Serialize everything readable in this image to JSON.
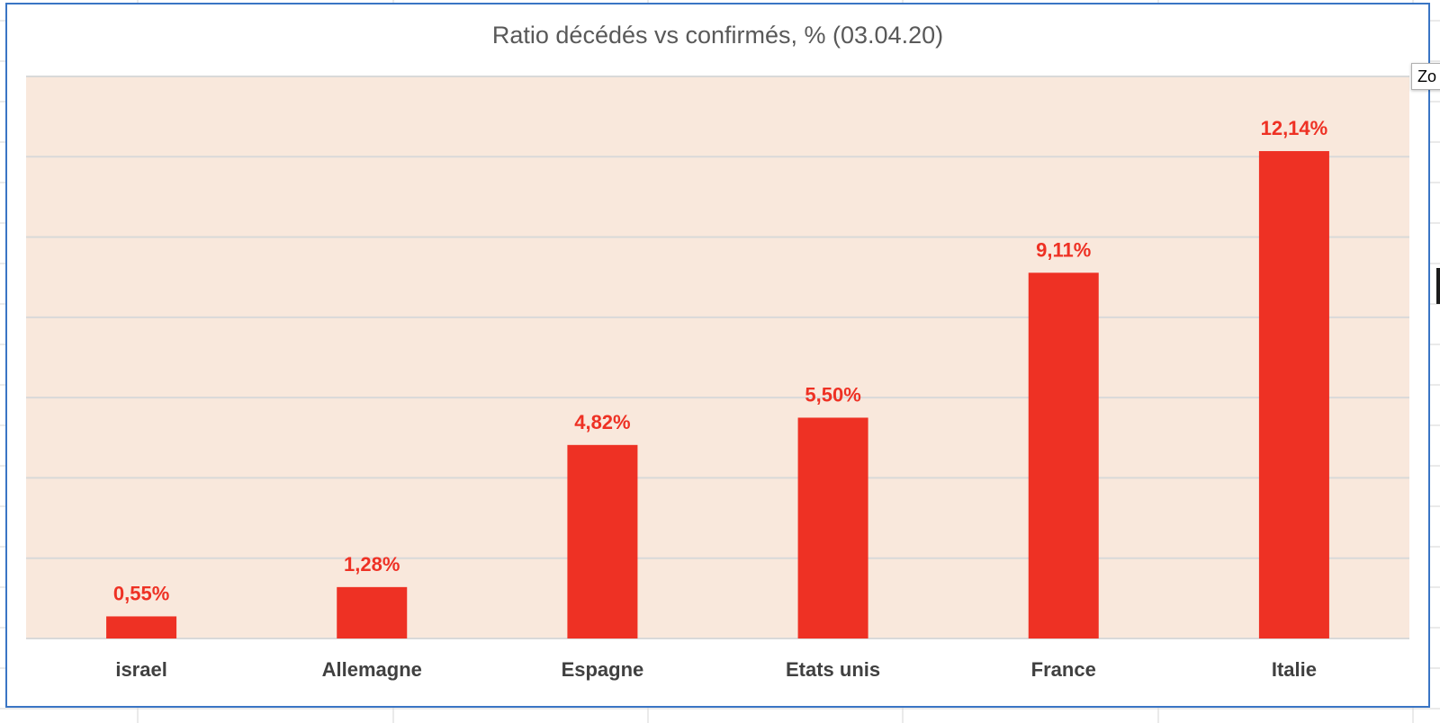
{
  "tooltip": {
    "text": "Zo"
  },
  "colors": {
    "bar": "#ee3124",
    "plot_background": "#f9e8dc",
    "gridline": "#d9d9d9",
    "frame_border": "#3a75c4",
    "sheet_gridline": "#d4d4d4"
  },
  "chart_data": {
    "type": "bar",
    "title": "Ratio décédés vs confirmés, % (03.04.20)",
    "xlabel": "",
    "ylabel": "",
    "categories": [
      "israel",
      "Allemagne",
      "Espagne",
      "Etats unis",
      "France",
      "Italie"
    ],
    "values": [
      0.55,
      1.28,
      4.82,
      5.5,
      9.11,
      12.14
    ],
    "value_labels": [
      "0,55%",
      "1,28%",
      "4,82%",
      "5,50%",
      "9,11%",
      "12,14%"
    ],
    "ylim": [
      0,
      14
    ],
    "gridlines_major_step": 2,
    "y_axis_labels_visible": false,
    "legend": "none",
    "grid": true
  }
}
